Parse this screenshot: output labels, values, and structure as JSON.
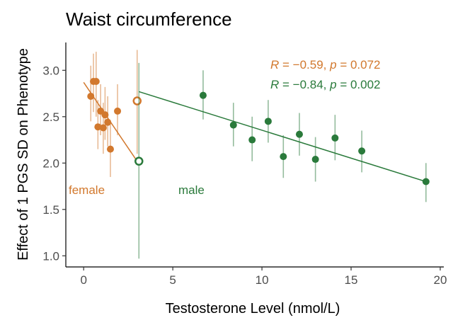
{
  "chart_data": {
    "type": "scatter",
    "title": "Waist circumference",
    "xlabel": "Testosterone Level (nmol/L)",
    "ylabel": "Effect of 1 PGS SD on Phenotype",
    "xlim": [
      -1,
      20.2
    ],
    "ylim": [
      0.88,
      3.3
    ],
    "x_ticks": [
      0,
      5,
      10,
      15,
      20
    ],
    "y_ticks": [
      1.0,
      1.5,
      2.0,
      2.5,
      3.0
    ],
    "x_tick_labels": [
      "0",
      "5",
      "10",
      "15",
      "20"
    ],
    "y_tick_labels": [
      "1.0",
      "1.5",
      "2.0",
      "2.5",
      "3.0"
    ],
    "grid": false,
    "series": [
      {
        "name": "female",
        "color": "#D2782D",
        "points": [
          {
            "x": 0.4,
            "y": 2.72,
            "lo": 2.45,
            "hi": 3.05
          },
          {
            "x": 0.55,
            "y": 2.88,
            "lo": 2.55,
            "hi": 3.18
          },
          {
            "x": 0.7,
            "y": 2.88,
            "lo": 2.5,
            "hi": 3.2
          },
          {
            "x": 0.8,
            "y": 2.39,
            "lo": 2.15,
            "hi": 2.68
          },
          {
            "x": 0.95,
            "y": 2.56,
            "lo": 2.3,
            "hi": 2.85
          },
          {
            "x": 1.1,
            "y": 2.38,
            "lo": 2.1,
            "hi": 2.65
          },
          {
            "x": 1.2,
            "y": 2.52,
            "lo": 2.25,
            "hi": 2.82
          },
          {
            "x": 1.35,
            "y": 2.44,
            "lo": 2.18,
            "hi": 2.72
          },
          {
            "x": 1.5,
            "y": 2.15,
            "lo": 1.85,
            "hi": 2.45
          },
          {
            "x": 1.9,
            "y": 2.56,
            "lo": 2.3,
            "hi": 2.85
          },
          {
            "x": 3.0,
            "y": 2.67,
            "lo": 2.1,
            "hi": 3.22,
            "open": true
          }
        ],
        "fit": {
          "x": [
            0.0,
            3.0
          ],
          "y": [
            2.87,
            2.02
          ]
        },
        "label": "female",
        "annotation": {
          "r_label": "R",
          "r_value": " = −0.59, ",
          "p_label": "p",
          "p_value": " = 0.072"
        }
      },
      {
        "name": "male",
        "color": "#2A7A3B",
        "points": [
          {
            "x": 3.1,
            "y": 2.02,
            "lo": 0.97,
            "hi": 3.08,
            "open": true
          },
          {
            "x": 6.7,
            "y": 2.73,
            "lo": 2.47,
            "hi": 3.0
          },
          {
            "x": 8.4,
            "y": 2.41,
            "lo": 2.18,
            "hi": 2.65
          },
          {
            "x": 9.45,
            "y": 2.25,
            "lo": 2.02,
            "hi": 2.5
          },
          {
            "x": 10.35,
            "y": 2.45,
            "lo": 2.22,
            "hi": 2.68
          },
          {
            "x": 11.2,
            "y": 2.07,
            "lo": 1.84,
            "hi": 2.3
          },
          {
            "x": 12.1,
            "y": 2.31,
            "lo": 2.08,
            "hi": 2.54
          },
          {
            "x": 13.0,
            "y": 2.04,
            "lo": 1.8,
            "hi": 2.28
          },
          {
            "x": 14.1,
            "y": 2.27,
            "lo": 2.03,
            "hi": 2.52
          },
          {
            "x": 15.6,
            "y": 2.13,
            "lo": 1.9,
            "hi": 2.35
          },
          {
            "x": 19.2,
            "y": 1.8,
            "lo": 1.58,
            "hi": 2.0
          }
        ],
        "fit": {
          "x": [
            3.1,
            19.2
          ],
          "y": [
            2.77,
            1.8
          ]
        },
        "label": "male",
        "annotation": {
          "r_label": "R",
          "r_value": " = −0.84, ",
          "p_label": "p",
          "p_value": " = 0.002"
        }
      }
    ]
  }
}
